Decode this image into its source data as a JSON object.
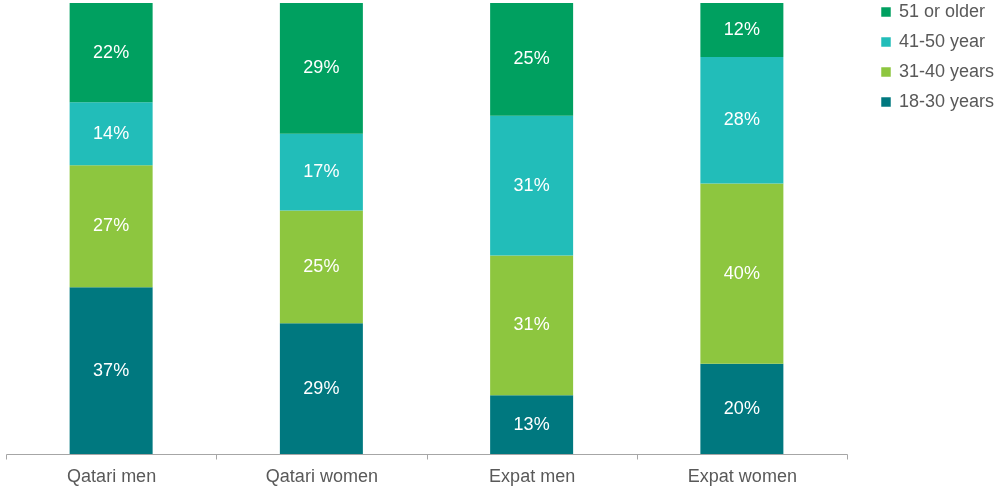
{
  "chart_data": {
    "type": "bar",
    "stacked": true,
    "categories": [
      "Qatari men",
      "Qatari women",
      "Expat men",
      "Expat women"
    ],
    "series": [
      {
        "name": "18-30 years",
        "color": "#00787f",
        "values": [
          37,
          29,
          13,
          20
        ],
        "value_labels": [
          "37%",
          "29%",
          "13%",
          "20%"
        ]
      },
      {
        "name": "31-40 years",
        "color": "#8dc63f",
        "values": [
          27,
          25,
          31,
          40
        ],
        "value_labels": [
          "27%",
          "25%",
          "31%",
          "40%"
        ]
      },
      {
        "name": "41-50 year",
        "color": "#22bdb9",
        "values": [
          14,
          17,
          31,
          28
        ],
        "value_labels": [
          "14%",
          "17%",
          "31%",
          "28%"
        ]
      },
      {
        "name": "51 or older",
        "color": "#00a060",
        "values": [
          22,
          29,
          25,
          12
        ],
        "value_labels": [
          "22%",
          "29%",
          "25%",
          "12%"
        ]
      }
    ],
    "ylim": [
      0,
      100
    ],
    "tick_labels": "x",
    "grid": false,
    "legend": "right"
  }
}
